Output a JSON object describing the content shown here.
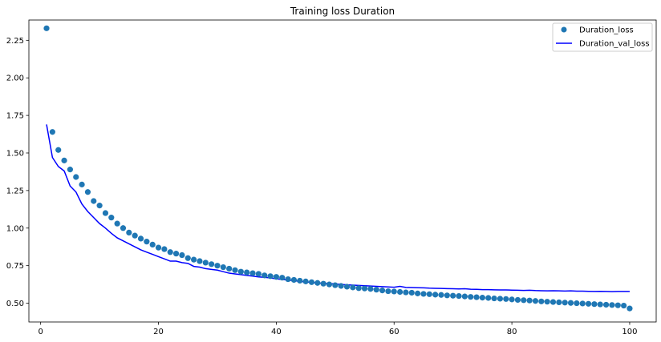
{
  "chart_data": {
    "type": "line",
    "title": "Training loss Duration",
    "xlabel": "",
    "ylabel": "",
    "xlim": [
      -2.0,
      104.5
    ],
    "ylim": [
      0.375,
      2.385
    ],
    "xticks": [
      0,
      20,
      40,
      60,
      80,
      100
    ],
    "xtick_labels": [
      "0",
      "20",
      "40",
      "60",
      "80",
      "100"
    ],
    "yticks": [
      0.5,
      0.75,
      1.0,
      1.25,
      1.5,
      1.75,
      2.0,
      2.25
    ],
    "ytick_labels": [
      "0.50",
      "0.75",
      "1.00",
      "1.25",
      "1.50",
      "1.75",
      "2.00",
      "2.25"
    ],
    "grid": false,
    "legend_position": "top-right",
    "series": [
      {
        "name": "Duration_loss",
        "style": "scatter",
        "color": "#1f77b4",
        "x": [
          1,
          2,
          3,
          4,
          5,
          6,
          7,
          8,
          9,
          10,
          11,
          12,
          13,
          14,
          15,
          16,
          17,
          18,
          19,
          20,
          21,
          22,
          23,
          24,
          25,
          26,
          27,
          28,
          29,
          30,
          31,
          32,
          33,
          34,
          35,
          36,
          37,
          38,
          39,
          40,
          41,
          42,
          43,
          44,
          45,
          46,
          47,
          48,
          49,
          50,
          51,
          52,
          53,
          54,
          55,
          56,
          57,
          58,
          59,
          60,
          61,
          62,
          63,
          64,
          65,
          66,
          67,
          68,
          69,
          70,
          71,
          72,
          73,
          74,
          75,
          76,
          77,
          78,
          79,
          80,
          81,
          82,
          83,
          84,
          85,
          86,
          87,
          88,
          89,
          90,
          91,
          92,
          93,
          94,
          95,
          96,
          97,
          98,
          99,
          100
        ],
        "values": [
          2.33,
          1.64,
          1.52,
          1.45,
          1.39,
          1.34,
          1.29,
          1.24,
          1.18,
          1.15,
          1.1,
          1.07,
          1.03,
          1.0,
          0.97,
          0.95,
          0.93,
          0.91,
          0.89,
          0.87,
          0.86,
          0.84,
          0.83,
          0.82,
          0.8,
          0.79,
          0.78,
          0.77,
          0.76,
          0.75,
          0.74,
          0.73,
          0.72,
          0.71,
          0.705,
          0.7,
          0.695,
          0.685,
          0.68,
          0.675,
          0.67,
          0.66,
          0.655,
          0.65,
          0.645,
          0.64,
          0.635,
          0.63,
          0.625,
          0.62,
          0.615,
          0.61,
          0.605,
          0.6,
          0.598,
          0.595,
          0.59,
          0.585,
          0.58,
          0.578,
          0.575,
          0.572,
          0.57,
          0.565,
          0.562,
          0.56,
          0.557,
          0.555,
          0.552,
          0.55,
          0.548,
          0.545,
          0.542,
          0.54,
          0.537,
          0.535,
          0.532,
          0.53,
          0.528,
          0.525,
          0.522,
          0.52,
          0.518,
          0.515,
          0.512,
          0.51,
          0.508,
          0.506,
          0.504,
          0.502,
          0.5,
          0.498,
          0.496,
          0.494,
          0.492,
          0.49,
          0.488,
          0.486,
          0.484,
          0.465
        ]
      },
      {
        "name": "Duration_val_loss",
        "style": "line",
        "color": "#0000ff",
        "x": [
          1,
          2,
          3,
          4,
          5,
          6,
          7,
          8,
          9,
          10,
          11,
          12,
          13,
          14,
          15,
          16,
          17,
          18,
          19,
          20,
          21,
          22,
          23,
          24,
          25,
          26,
          27,
          28,
          29,
          30,
          31,
          32,
          33,
          34,
          35,
          36,
          37,
          38,
          39,
          40,
          41,
          42,
          43,
          44,
          45,
          46,
          47,
          48,
          49,
          50,
          51,
          52,
          53,
          54,
          55,
          56,
          57,
          58,
          59,
          60,
          61,
          62,
          63,
          64,
          65,
          66,
          67,
          68,
          69,
          70,
          71,
          72,
          73,
          74,
          75,
          76,
          77,
          78,
          79,
          80,
          81,
          82,
          83,
          84,
          85,
          86,
          87,
          88,
          89,
          90,
          91,
          92,
          93,
          94,
          95,
          96,
          97,
          98,
          99,
          100
        ],
        "values": [
          1.69,
          1.47,
          1.41,
          1.38,
          1.28,
          1.24,
          1.16,
          1.11,
          1.07,
          1.03,
          1.0,
          0.965,
          0.935,
          0.915,
          0.895,
          0.875,
          0.855,
          0.84,
          0.825,
          0.81,
          0.795,
          0.78,
          0.78,
          0.77,
          0.765,
          0.745,
          0.74,
          0.73,
          0.725,
          0.72,
          0.71,
          0.7,
          0.695,
          0.69,
          0.685,
          0.68,
          0.675,
          0.672,
          0.668,
          0.662,
          0.658,
          0.654,
          0.65,
          0.645,
          0.642,
          0.638,
          0.635,
          0.632,
          0.63,
          0.628,
          0.625,
          0.622,
          0.62,
          0.618,
          0.616,
          0.614,
          0.612,
          0.61,
          0.608,
          0.606,
          0.612,
          0.605,
          0.604,
          0.603,
          0.602,
          0.6,
          0.599,
          0.598,
          0.597,
          0.596,
          0.595,
          0.596,
          0.593,
          0.592,
          0.59,
          0.59,
          0.589,
          0.588,
          0.588,
          0.587,
          0.586,
          0.585,
          0.586,
          0.584,
          0.583,
          0.582,
          0.583,
          0.582,
          0.581,
          0.582,
          0.58,
          0.58,
          0.579,
          0.578,
          0.579,
          0.578,
          0.577,
          0.578,
          0.578,
          0.578
        ]
      }
    ]
  }
}
